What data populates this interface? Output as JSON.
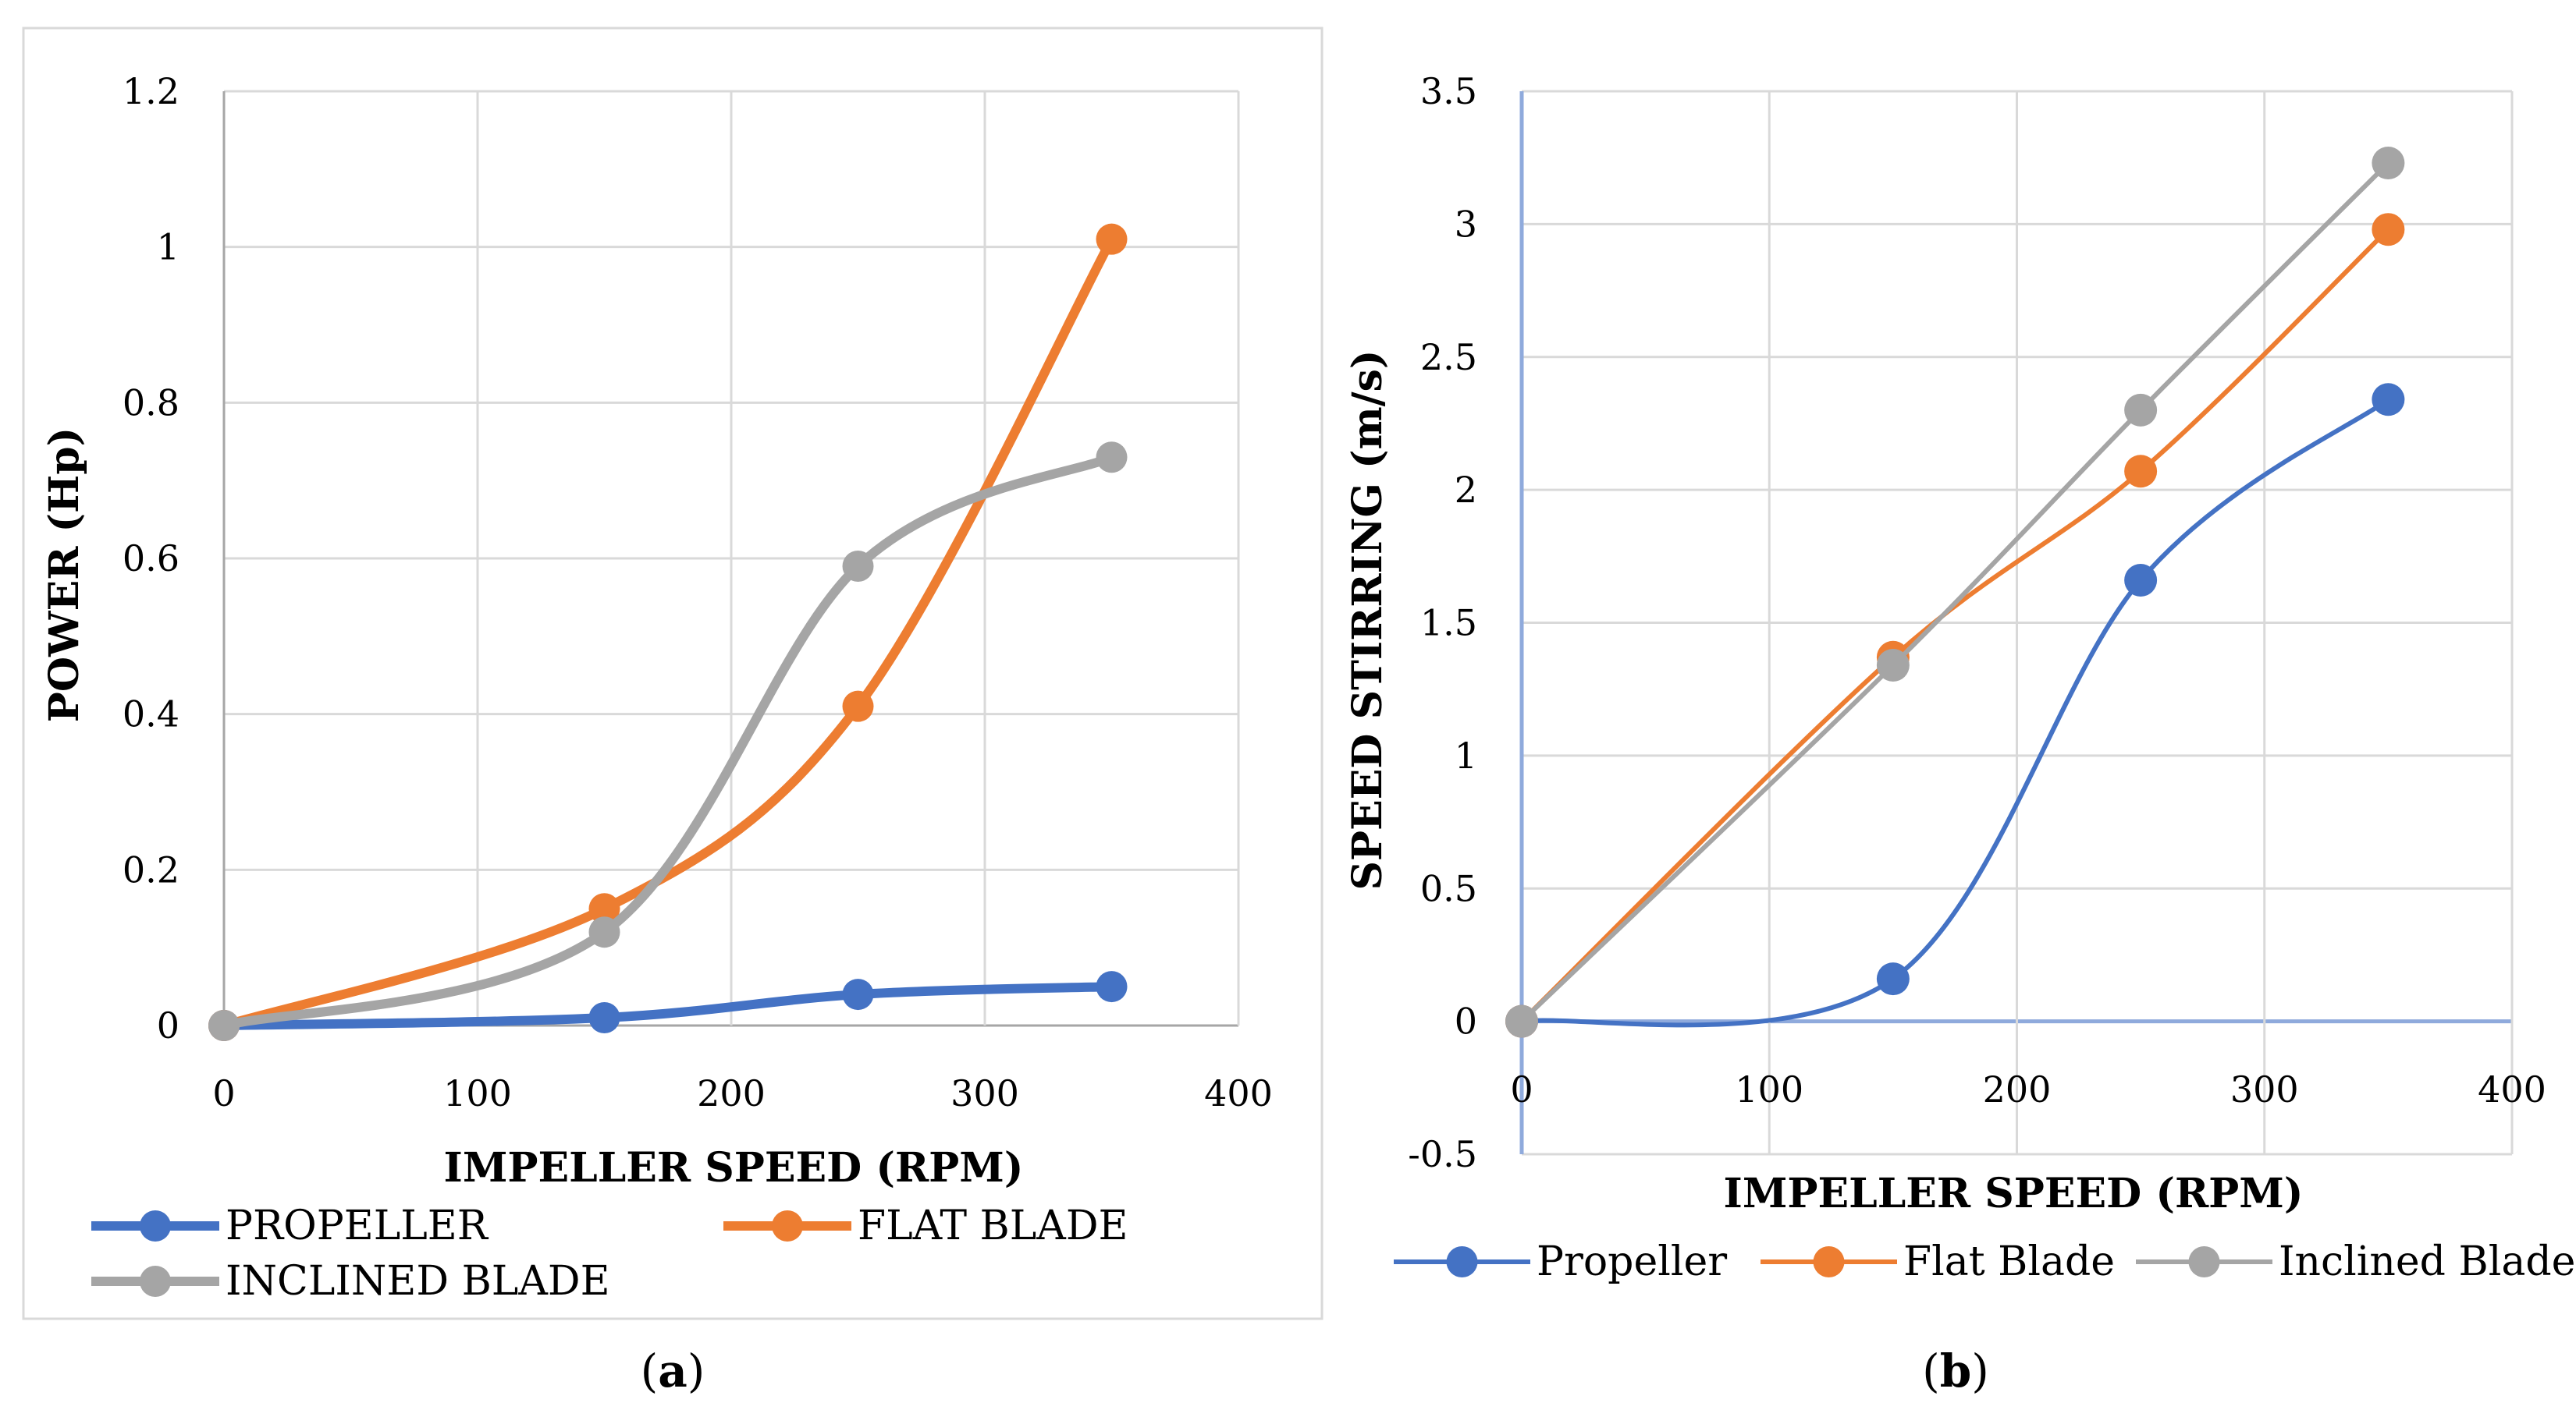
{
  "colors": {
    "propeller": "#4472C4",
    "flat": "#ED7D31",
    "inclined": "#A5A5A5",
    "grid": "#D9D9D9",
    "axis": "#A6A6A6",
    "axisB": "#8FAADC"
  },
  "panels": {
    "a": {
      "label": "a"
    },
    "b": {
      "label": "b"
    }
  },
  "chart_data": [
    {
      "type": "line",
      "title": "",
      "xlabel": "IMPELLER SPEED (RPM)",
      "ylabel": "POWER (Hp)",
      "xlim": [
        0,
        400
      ],
      "ylim": [
        0,
        1.2
      ],
      "xticks": [
        "0",
        "100",
        "200",
        "300",
        "400"
      ],
      "yticks": [
        "0",
        "0.2",
        "0.4",
        "0.6",
        "0.8",
        "1",
        "1.2"
      ],
      "x": [
        0,
        150,
        250,
        350
      ],
      "series": [
        {
          "name": "PROPELLER",
          "key": "propeller",
          "values": [
            0,
            0.01,
            0.04,
            0.05
          ]
        },
        {
          "name": "FLAT BLADE",
          "key": "flat",
          "values": [
            0,
            0.15,
            0.41,
            1.01
          ]
        },
        {
          "name": "INCLINED BLADE",
          "key": "inclined",
          "values": [
            0,
            0.12,
            0.59,
            0.73
          ]
        }
      ],
      "legend": "bottom",
      "grid": true
    },
    {
      "type": "line",
      "title": "",
      "xlabel": "IMPELLER SPEED (RPM)",
      "ylabel": "SPEED STIRRING  (m/s)",
      "xlim": [
        0,
        400
      ],
      "ylim": [
        -0.5,
        3.5
      ],
      "xticks": [
        "0",
        "100",
        "200",
        "300",
        "400"
      ],
      "yticks": [
        "-0.5",
        "0",
        "0.5",
        "1",
        "1.5",
        "2",
        "2.5",
        "3",
        "3.5"
      ],
      "x": [
        0,
        150,
        250,
        350
      ],
      "series": [
        {
          "name": "Propeller",
          "key": "propeller",
          "values": [
            0,
            0.16,
            1.66,
            2.34
          ]
        },
        {
          "name": "Flat Blade",
          "key": "flat",
          "values": [
            0,
            1.37,
            2.07,
            2.98
          ]
        },
        {
          "name": "Inclined Blade",
          "key": "inclined",
          "values": [
            0,
            1.34,
            2.3,
            3.23
          ]
        }
      ],
      "legend": "bottom",
      "grid": true
    }
  ]
}
